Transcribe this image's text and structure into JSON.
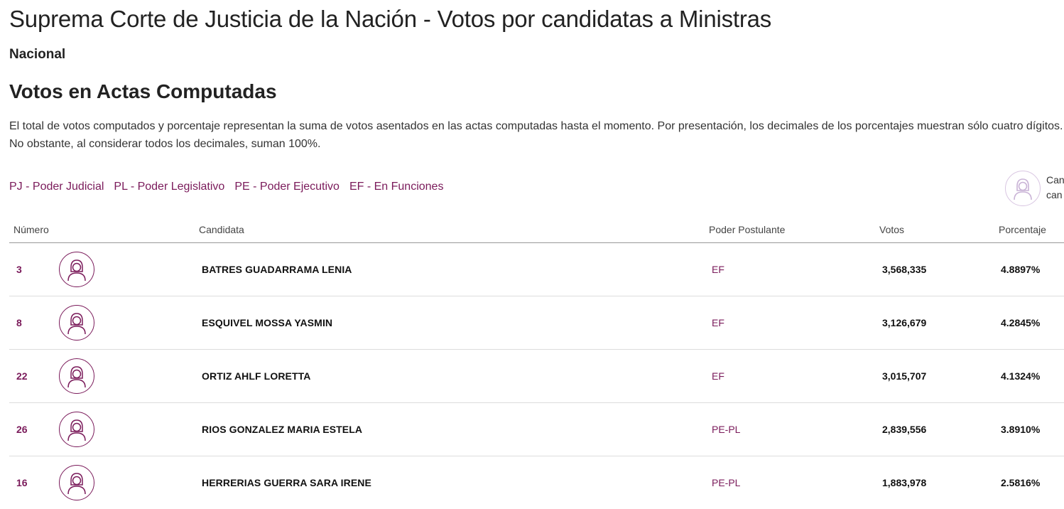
{
  "header": {
    "title": "Suprema Corte de Justicia de la Nación - Votos por candidatas a Ministras",
    "scope": "Nacional",
    "section_title": "Votos en Actas Computadas",
    "description": "El total de votos computados y porcentaje representan la suma de votos asentados en las actas computadas hasta el momento. Por presentación, los decimales de los porcentajes muestran sólo cuatro dígitos. No obstante, al considerar todos los decimales, suman 100%."
  },
  "legend": {
    "items": [
      "PJ - Poder Judicial",
      "PL - Poder Legislativo",
      "PE - Poder Ejecutivo",
      "EF - En Funciones"
    ],
    "candidate_key_line1": "Can",
    "candidate_key_line2": "can",
    "candidate_key_icon": "candidate-woman-icon"
  },
  "table": {
    "columns": {
      "numero": "Número",
      "candidata": "Candidata",
      "poder": "Poder Postulante",
      "votos": "Votos",
      "porcentaje": "Porcentaje"
    },
    "rows": [
      {
        "numero": "3",
        "candidata": "BATRES GUADARRAMA LENIA",
        "poder": "EF",
        "votos": "3,568,335",
        "porcentaje": "4.8897%"
      },
      {
        "numero": "8",
        "candidata": "ESQUIVEL MOSSA YASMIN",
        "poder": "EF",
        "votos": "3,126,679",
        "porcentaje": "4.2845%"
      },
      {
        "numero": "22",
        "candidata": "ORTIZ AHLF LORETTA",
        "poder": "EF",
        "votos": "3,015,707",
        "porcentaje": "4.1324%"
      },
      {
        "numero": "26",
        "candidata": "RIOS GONZALEZ MARIA ESTELA",
        "poder": "PE-PL",
        "votos": "2,839,556",
        "porcentaje": "3.8910%"
      },
      {
        "numero": "16",
        "candidata": "HERRERIAS GUERRA SARA IRENE",
        "poder": "PE-PL",
        "votos": "1,883,978",
        "porcentaje": "2.5816%"
      }
    ]
  },
  "colors": {
    "accent": "#7a1a5a",
    "text": "#222222",
    "border": "#dddddd"
  }
}
